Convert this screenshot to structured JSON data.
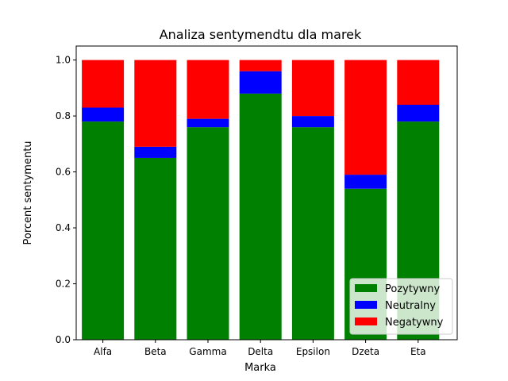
{
  "chart_data": {
    "type": "bar",
    "stacked": true,
    "title": "Analiza sentymendtu dla marek",
    "xlabel": "Marka",
    "ylabel": "Porcent sentymentu",
    "ylim": [
      0,
      1.05
    ],
    "yticks": [
      "0.0",
      "0.2",
      "0.4",
      "0.6",
      "0.8",
      "1.0"
    ],
    "ytick_values": [
      0,
      0.2,
      0.4,
      0.6,
      0.8,
      1.0
    ],
    "categories": [
      "Alfa",
      "Beta",
      "Gamma",
      "Delta",
      "Epsilon",
      "Dzeta",
      "Eta"
    ],
    "series": [
      {
        "name": "Pozytywny",
        "color": "#008000",
        "values": [
          0.78,
          0.65,
          0.76,
          0.88,
          0.76,
          0.54,
          0.78
        ]
      },
      {
        "name": "Neutralny",
        "color": "#0000ff",
        "values": [
          0.05,
          0.04,
          0.03,
          0.08,
          0.04,
          0.05,
          0.06
        ]
      },
      {
        "name": "Negatywny",
        "color": "#ff0000",
        "values": [
          0.17,
          0.31,
          0.21,
          0.04,
          0.2,
          0.41,
          0.16
        ]
      }
    ],
    "legend_position": "lower-right",
    "grid": false
  }
}
